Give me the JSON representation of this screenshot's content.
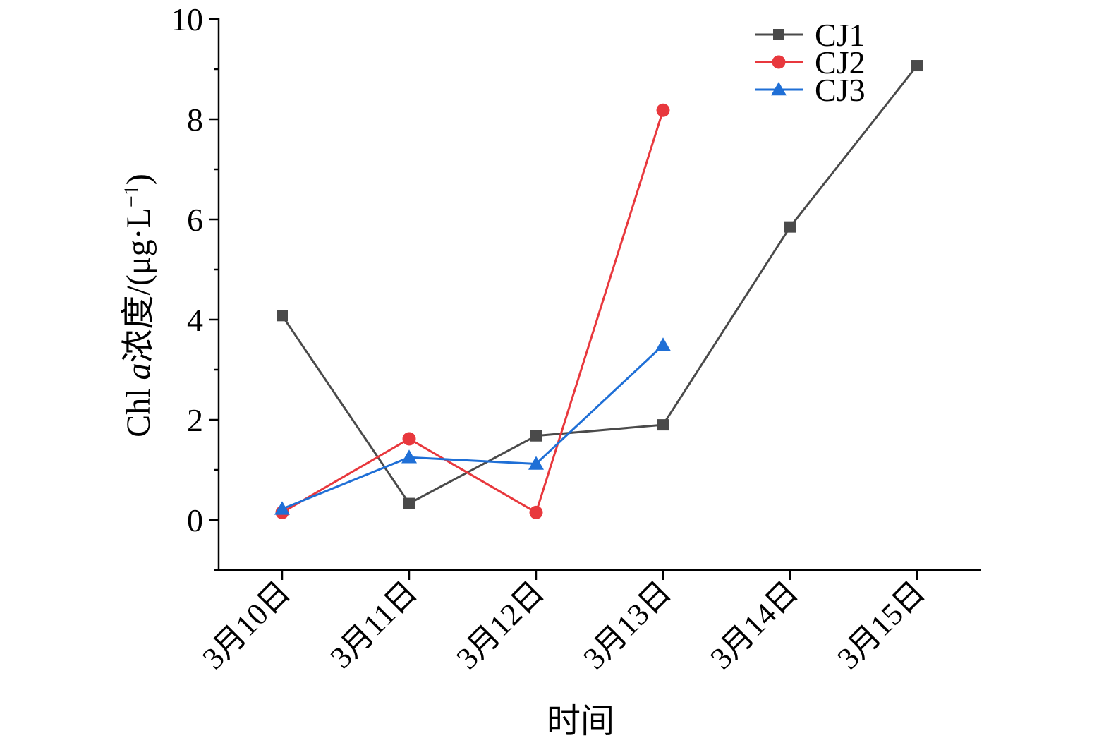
{
  "chart_data": {
    "type": "line",
    "categories": [
      "3月10日",
      "3月11日",
      "3月12日",
      "3月13日",
      "3月14日",
      "3月15日"
    ],
    "series": [
      {
        "name": "CJ1",
        "color": "#4a4a4a",
        "marker": "square",
        "values": [
          4.08,
          0.33,
          1.68,
          1.9,
          5.85,
          9.07
        ]
      },
      {
        "name": "CJ2",
        "color": "#e8383d",
        "marker": "circle",
        "values": [
          0.15,
          1.62,
          0.15,
          8.18,
          null,
          null
        ]
      },
      {
        "name": "CJ3",
        "color": "#1f6fd6",
        "marker": "triangle",
        "values": [
          0.22,
          1.25,
          1.12,
          3.49,
          null,
          null
        ]
      }
    ],
    "xlabel": "时间",
    "ylabel": "Chl a浓度/(μg·L⁻¹)",
    "ylabel_parts": {
      "prefix": "Chl ",
      "italic": "a",
      "suffix": "浓度/(μg·L",
      "sup": "−1",
      "close": ")"
    },
    "ylim": [
      -1,
      10
    ],
    "yticks": [
      0,
      2,
      4,
      6,
      8,
      10
    ],
    "y_minor_step": 1,
    "grid": false,
    "legend_position": "top-right"
  }
}
